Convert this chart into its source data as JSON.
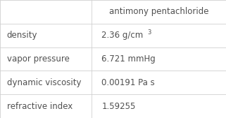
{
  "header_col1": "",
  "header_col2": "antimony pentachloride",
  "rows": [
    [
      "density",
      "2.36 g/cm",
      "3"
    ],
    [
      "vapor pressure",
      "6.721 mmHg",
      ""
    ],
    [
      "dynamic viscosity",
      "0.00191 Pa s",
      ""
    ],
    [
      "refractive index",
      "1.59255",
      ""
    ]
  ],
  "bg_color": "#ffffff",
  "line_color": "#d0d0d0",
  "text_color": "#505050",
  "font_size": 8.5,
  "col_split": 0.405,
  "fig_width": 3.21,
  "fig_height": 1.69,
  "dpi": 100
}
